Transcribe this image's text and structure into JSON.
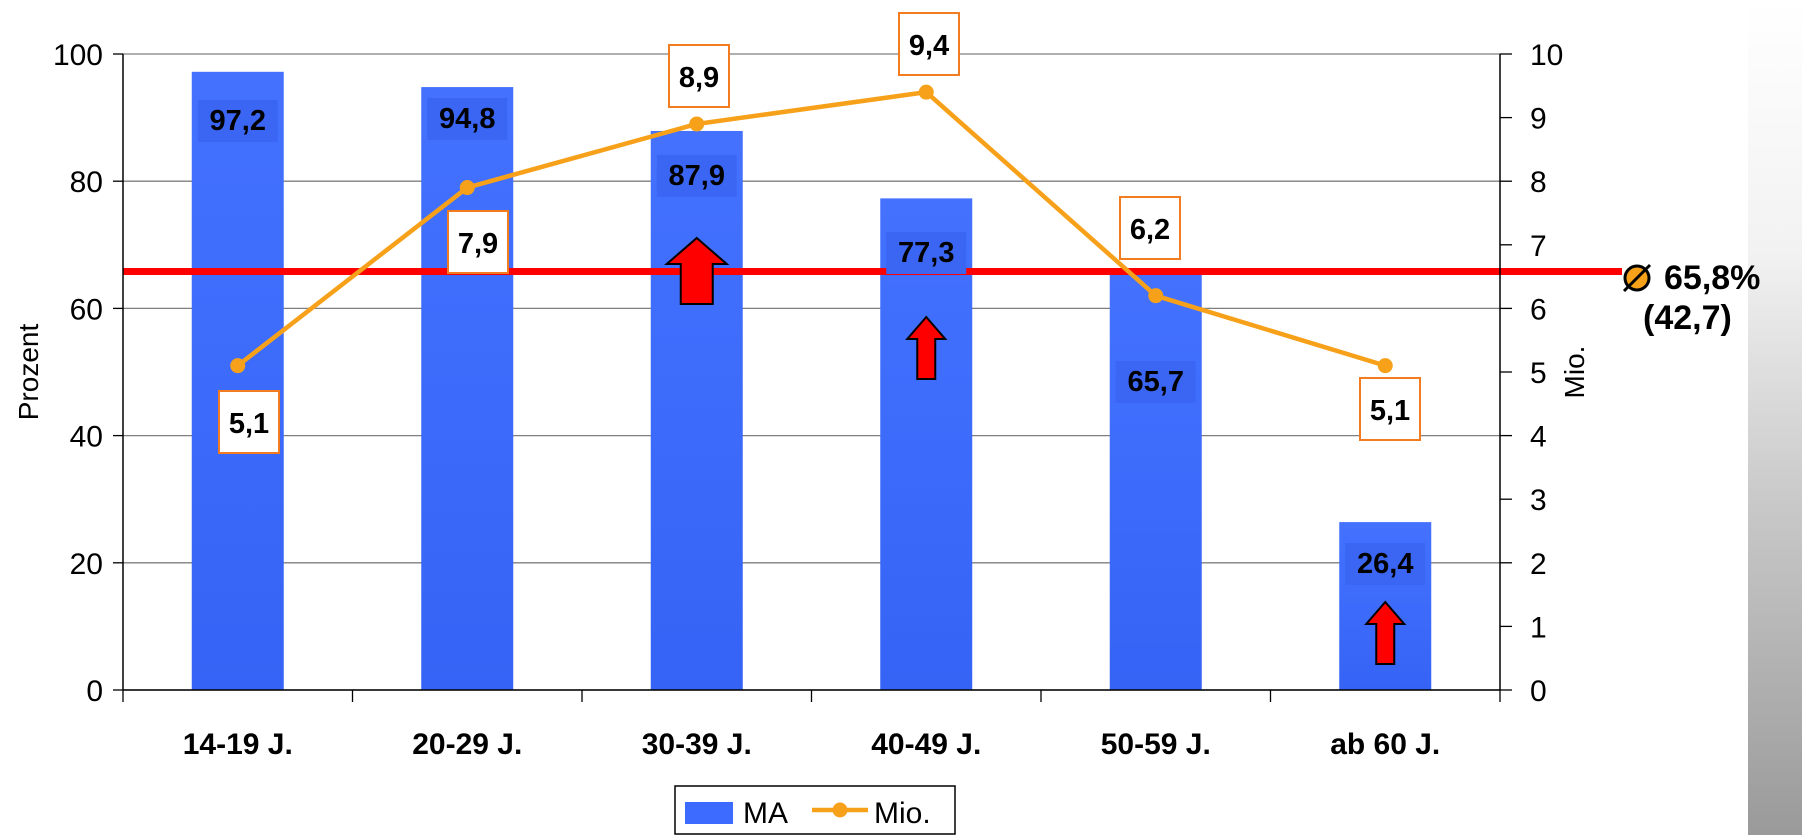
{
  "chart_data": {
    "type": "bar",
    "categories": [
      "14-19 J.",
      "20-29 J.",
      "30-39 J.",
      "40-49 J.",
      "50-59 J.",
      "ab 60 J."
    ],
    "series": [
      {
        "name": "MA",
        "type": "bar",
        "axis": "left",
        "values": [
          97.2,
          94.8,
          87.9,
          77.3,
          65.7,
          26.4
        ],
        "labels": [
          "97,2",
          "94,8",
          "87,9",
          "77,3",
          "65,7",
          "26,4"
        ],
        "color": "#3d6bff"
      },
      {
        "name": "Mio.",
        "type": "line",
        "axis": "right",
        "values": [
          5.1,
          7.9,
          8.9,
          9.4,
          6.2,
          5.1
        ],
        "labels": [
          "5,1",
          "7,9",
          "8,9",
          "9,4",
          "6,2",
          "5,1"
        ],
        "color": "#f7a11a"
      }
    ],
    "ylabel": "Prozent",
    "y2label": "Mio.",
    "ylim": [
      0,
      100
    ],
    "y2lim": [
      0,
      10
    ],
    "yticks": [
      "0",
      "20",
      "40",
      "60",
      "80",
      "100"
    ],
    "y2ticks": [
      "0",
      "1",
      "2",
      "3",
      "4",
      "5",
      "6",
      "7",
      "8",
      "9",
      "10"
    ],
    "reference_line": {
      "value": 65.8,
      "color": "#ff0000",
      "label_line1": "65,8%",
      "label_line2": "(42,7)"
    },
    "up_arrows": [
      {
        "category": "30-39 J.",
        "size": "large"
      },
      {
        "category": "40-49 J.",
        "size": "small"
      },
      {
        "category": "ab 60 J.",
        "size": "small"
      }
    ],
    "arrow_color": "#ff0000",
    "legend": {
      "position": "bottom",
      "items": [
        "MA",
        "Mio."
      ]
    },
    "grid": true
  }
}
